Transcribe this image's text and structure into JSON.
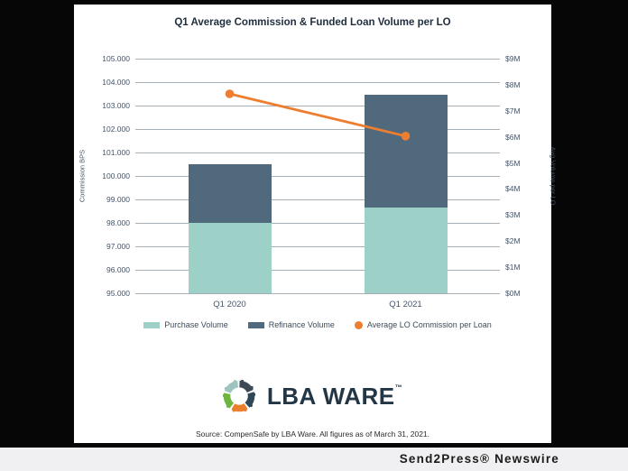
{
  "chart_data": {
    "type": "bar",
    "subtype": "stacked-bars-with-line-overlay",
    "title": "Q1 Average Commission & Funded Loan Volume per LO",
    "categories": [
      "Q1 2020",
      "Q1 2021"
    ],
    "series": [
      {
        "name": "Purchase Volume",
        "render": "bar",
        "stack": "volume",
        "axis": "right",
        "color": "#9dd0c6",
        "values_musd": [
          2.7,
          3.3
        ]
      },
      {
        "name": "Refinance Volume",
        "render": "bar",
        "stack": "volume",
        "axis": "right",
        "color": "#50697d",
        "values_musd": [
          2.25,
          4.3
        ]
      },
      {
        "name": "Average LO Commission per Loan",
        "render": "line",
        "axis": "left",
        "color": "#ee7e2f",
        "values_bps": [
          103.5,
          101.7
        ]
      }
    ],
    "left_axis": {
      "label": "Commission BPS",
      "min": 95,
      "max": 105,
      "step": 1,
      "tick_labels": [
        "105.000",
        "104.000",
        "103.000",
        "102.000",
        "101.000",
        "100.000",
        "99.000",
        "98.000",
        "97.000",
        "96.000",
        "95.000"
      ]
    },
    "right_axis": {
      "label": "Avg Volume per LO",
      "min": 0,
      "max": 9,
      "step": 1,
      "tick_labels": [
        "$9M",
        "$8M",
        "$7M",
        "$6M",
        "$5M",
        "$4M",
        "$3M",
        "$2M",
        "$1M",
        "$0M"
      ]
    },
    "grid": true,
    "legend_position": "bottom",
    "totals_musd": [
      4.95,
      7.6
    ]
  },
  "branding": {
    "logo_text": "LBA WARE",
    "logo_trademark": "™",
    "logo_icon": "gear-pentagon-icon",
    "logo_colors": {
      "teal": "#9ec4c0",
      "slate": "#3d4a55",
      "navy": "#2f4857",
      "orange": "#e97e2d",
      "green": "#6eb43e"
    }
  },
  "source_note": "Source: CompenSafe by LBA Ware. All figures as of March 31, 2021.",
  "credit": "Send2Press® Newswire"
}
